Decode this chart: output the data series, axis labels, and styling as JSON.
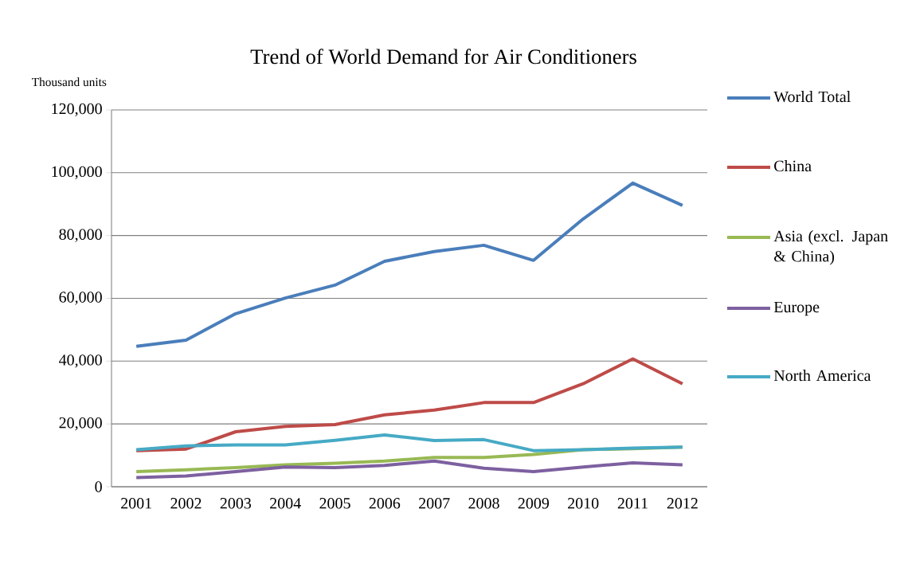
{
  "chart_data": {
    "type": "line",
    "title": "Trend of World Demand for Air Conditioners",
    "ylabel": "Thousand units",
    "categories": [
      "2001",
      "2002",
      "2003",
      "2004",
      "2005",
      "2006",
      "2007",
      "2008",
      "2009",
      "2010",
      "2011",
      "2012"
    ],
    "series": [
      {
        "name": "World Total",
        "color": "#4a7ebb",
        "values": [
          44700,
          46700,
          55100,
          60100,
          64200,
          71800,
          74900,
          76900,
          72100,
          85300,
          96700,
          89600
        ]
      },
      {
        "name": "China",
        "color": "#be4b48",
        "values": [
          11500,
          12000,
          17500,
          19200,
          19800,
          22900,
          24400,
          26800,
          26800,
          32800,
          40700,
          32800
        ]
      },
      {
        "name": "Asia (excl. Japan & China)",
        "color": "#98b954",
        "values": [
          4800,
          5400,
          6100,
          7000,
          7500,
          8200,
          9300,
          9300,
          10300,
          11800,
          12100,
          12600
        ]
      },
      {
        "name": "Europe",
        "color": "#7d60a0",
        "values": [
          2900,
          3400,
          4800,
          6300,
          6100,
          6800,
          8200,
          5900,
          4800,
          6300,
          7600,
          7000
        ]
      },
      {
        "name": "North America",
        "color": "#46aac5",
        "values": [
          11800,
          13000,
          13300,
          13300,
          14800,
          16500,
          14700,
          15000,
          11500,
          11800,
          12300,
          12600
        ]
      }
    ],
    "ylim": [
      0,
      120000
    ],
    "yticks": [
      0,
      {
        "value": 20000,
        "label": "20,000"
      },
      {
        "value": 40000,
        "label": "40,000"
      },
      {
        "value": 60000,
        "label": "60,000"
      },
      {
        "value": 80000,
        "label": "80,000"
      },
      {
        "value": 100000,
        "label": "100,000"
      },
      {
        "value": 120000,
        "label": "120,000"
      }
    ],
    "grid": "y",
    "legend": "right",
    "marker": "none",
    "line_style": "solid"
  }
}
